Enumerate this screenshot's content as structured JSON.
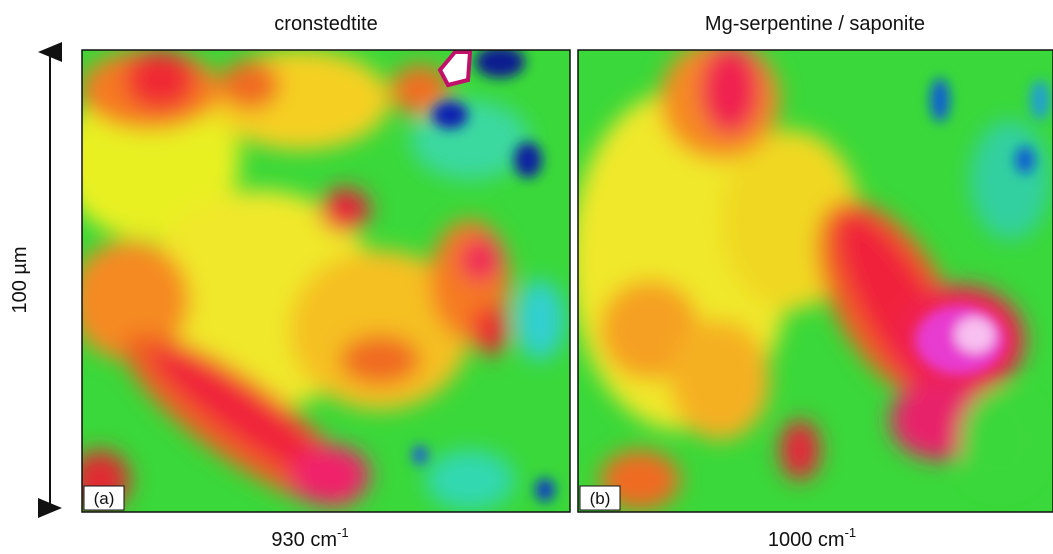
{
  "scale_bar": "100 µm",
  "panels": [
    {
      "title": "cronstedtite",
      "label": "(a)",
      "wavenumber": "930 cm",
      "exponent": "-1"
    },
    {
      "title": "Mg-serpentine / saponite",
      "label": "(b)",
      "wavenumber": "1000 cm",
      "exponent": "-1"
    }
  ]
}
